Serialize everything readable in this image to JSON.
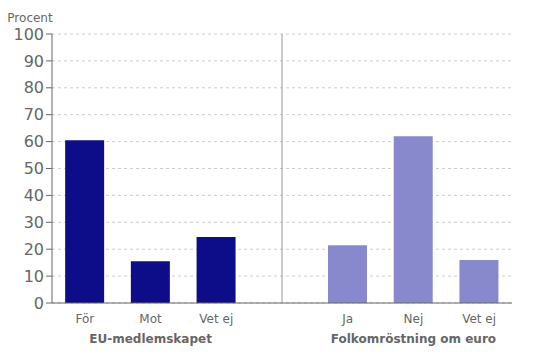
{
  "chart_data": {
    "type": "bar",
    "ylabel": "Procent",
    "groups": [
      {
        "label": "EU-medlemskapet",
        "categories": [
          "För",
          "Mot",
          "Vet ej"
        ],
        "values": [
          60.5,
          15.5,
          24.5
        ],
        "color": "#0d0d8a"
      },
      {
        "label": "Folkomröstning om euro",
        "categories": [
          "Ja",
          "Nej",
          "Vet ej"
        ],
        "values": [
          21.5,
          62.0,
          16.0
        ],
        "color": "#8888cc"
      }
    ],
    "ylim": [
      0,
      100
    ],
    "yticks": [
      0,
      10,
      20,
      30,
      40,
      50,
      60,
      70,
      80,
      90,
      100
    ],
    "grid": true
  }
}
